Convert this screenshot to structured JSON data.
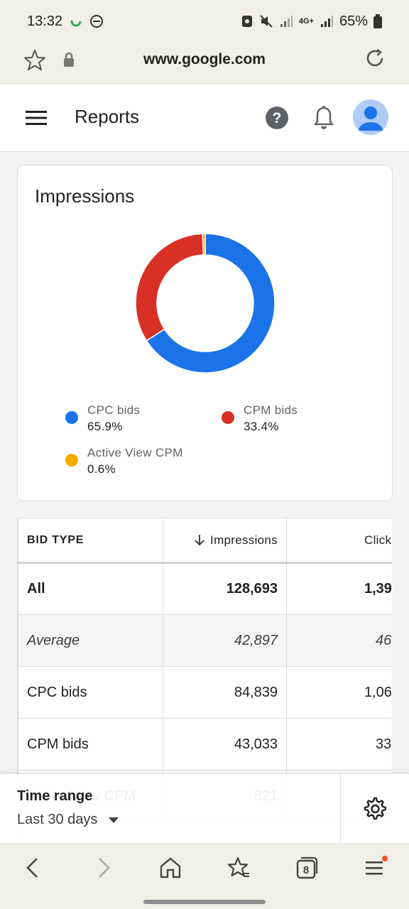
{
  "status_bar": {
    "time": "13:32",
    "network": "4G+",
    "battery": "65%"
  },
  "browser": {
    "url": "www.google.com",
    "tab_count": "8"
  },
  "header": {
    "title": "Reports"
  },
  "impressions_card": {
    "title": "Impressions",
    "legend": [
      {
        "label": "CPC bids",
        "value": "65.9%",
        "color": "#1a73e8"
      },
      {
        "label": "CPM bids",
        "value": "33.4%",
        "color": "#d93025"
      },
      {
        "label": "Active View CPM",
        "value": "0.6%",
        "color": "#f9ab00"
      }
    ]
  },
  "chart_data": {
    "type": "pie",
    "title": "Impressions",
    "labels": [
      "CPC bids",
      "CPM bids",
      "Active View CPM"
    ],
    "values": [
      65.9,
      33.4,
      0.6
    ],
    "colors": [
      "#1a73e8",
      "#d93025",
      "#f9ab00"
    ],
    "legend_position": "bottom"
  },
  "table": {
    "columns": [
      "BID TYPE",
      "Impressions",
      "Click"
    ],
    "rows": [
      {
        "type": "All",
        "impressions": "128,693",
        "clicks": "1,39"
      },
      {
        "type": "Average",
        "impressions": "42,897",
        "clicks": "46"
      },
      {
        "type": "CPC bids",
        "impressions": "84,839",
        "clicks": "1,06"
      },
      {
        "type": "CPM bids",
        "impressions": "43,033",
        "clicks": "33"
      },
      {
        "type": "Active View CPM",
        "impressions": "821",
        "clicks": ""
      }
    ]
  },
  "time_range": {
    "label": "Time range",
    "value": "Last 30 days"
  }
}
